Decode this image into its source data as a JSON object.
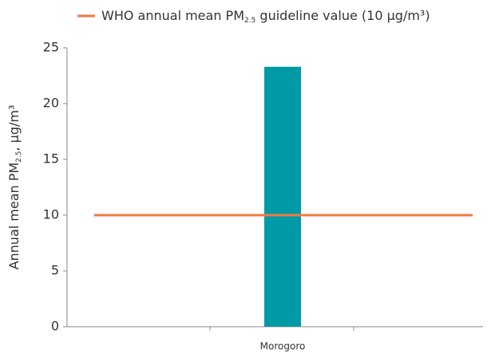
{
  "chart_data": {
    "type": "bar",
    "categories": [
      "Morogoro"
    ],
    "values": [
      23.3
    ],
    "color": "#009aa6",
    "ylim": [
      0,
      25
    ],
    "yticks": [
      0,
      5,
      10,
      15,
      20,
      25
    ],
    "ylabel": [
      "Annual mean PM",
      "2.5",
      ", µg/m³"
    ],
    "reference_line": {
      "value": 10,
      "color": "#f07a3c",
      "label": [
        "WHO annual mean PM",
        "2.5",
        " guideline value (10 µg/m³)"
      ]
    }
  }
}
